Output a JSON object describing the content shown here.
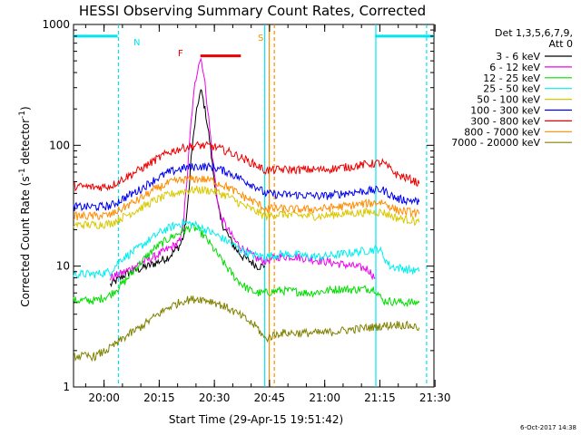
{
  "chart_data": {
    "type": "line",
    "title": "HESSI Observing Summary Count Rates, Corrected",
    "xlabel": "Start Time (29-Apr-15 19:51:42)",
    "ylabel_main": "Corrected Count Rate (s",
    "ylabel_sup1": "-1",
    "ylabel_mid": " detector",
    "ylabel_sup2": "-1",
    "ylabel_end": ")",
    "ylog": true,
    "ylim": [
      1,
      1000
    ],
    "xlim_minutes": [
      0,
      98
    ],
    "x_ticks": [
      {
        "label": "20:00",
        "min": 8.3
      },
      {
        "label": "20:15",
        "min": 23.3
      },
      {
        "label": "20:30",
        "min": 38.3
      },
      {
        "label": "20:45",
        "min": 53.3
      },
      {
        "label": "21:00",
        "min": 68.3
      },
      {
        "label": "21:15",
        "min": 83.3
      },
      {
        "label": "21:30",
        "min": 98.3
      }
    ],
    "y_ticks": [
      {
        "label": "1",
        "v": 1
      },
      {
        "label": "10",
        "v": 10
      },
      {
        "label": "100",
        "v": 100
      },
      {
        "label": "1000",
        "v": 1000
      }
    ],
    "legend_header": [
      "Det 1,3,5,6,7,9,",
      "Att 0"
    ],
    "timestamp": "6-Oct-2017 14:38",
    "markers": {
      "N": {
        "label": "N",
        "color": "#00e5ee",
        "segments": [
          [
            0,
            12
          ],
          [
            82,
            98
          ]
        ],
        "value": 800
      },
      "F": {
        "label": "F",
        "color": "#ee0000",
        "segments": [
          [
            34.5,
            45.5
          ]
        ],
        "value": 550
      },
      "S": {
        "label": "S",
        "color": "#ff8c00"
      }
    },
    "vlines": [
      {
        "min": 12.2,
        "color": "#00e5ee",
        "dash": true
      },
      {
        "min": 52.0,
        "color": "#00e5ee",
        "dash": false
      },
      {
        "min": 53.2,
        "color": "#ff8c00",
        "dash": false
      },
      {
        "min": 54.6,
        "color": "#ff8c00",
        "dash": true
      },
      {
        "min": 82.2,
        "color": "#00e5ee",
        "dash": false
      },
      {
        "min": 96.0,
        "color": "#00e5ee",
        "dash": true
      }
    ],
    "series": [
      {
        "name": "3 - 6 keV",
        "color": "#000000",
        "points": [
          [
            10,
            7
          ],
          [
            14,
            8.5
          ],
          [
            18,
            9.5
          ],
          [
            22,
            10.5
          ],
          [
            26,
            12
          ],
          [
            29,
            15
          ],
          [
            30,
            18
          ],
          [
            31,
            30
          ],
          [
            32,
            80
          ],
          [
            33,
            150
          ],
          [
            34,
            240
          ],
          [
            34.6,
            280
          ],
          [
            35,
            260
          ],
          [
            36,
            180
          ],
          [
            37,
            110
          ],
          [
            38,
            60
          ],
          [
            39,
            35
          ],
          [
            40,
            24
          ],
          [
            42,
            18
          ],
          [
            44,
            14
          ],
          [
            46,
            12
          ],
          [
            48,
            11
          ],
          [
            50,
            10
          ],
          [
            52,
            10
          ]
        ]
      },
      {
        "name": "6 - 12 keV",
        "color": "#ee00ee",
        "points": [
          [
            10,
            8
          ],
          [
            14,
            9
          ],
          [
            18,
            10.5
          ],
          [
            22,
            12
          ],
          [
            26,
            14
          ],
          [
            29,
            16
          ],
          [
            30,
            25
          ],
          [
            31,
            60
          ],
          [
            32,
            160
          ],
          [
            33,
            320
          ],
          [
            34,
            480
          ],
          [
            34.6,
            520
          ],
          [
            35,
            470
          ],
          [
            36,
            280
          ],
          [
            37,
            140
          ],
          [
            38,
            70
          ],
          [
            39,
            38
          ],
          [
            40,
            26
          ],
          [
            42,
            20
          ],
          [
            44,
            16
          ],
          [
            46,
            14
          ],
          [
            48,
            12.5
          ],
          [
            50,
            11.5
          ],
          [
            52,
            11
          ],
          [
            56,
            12
          ],
          [
            60,
            12
          ],
          [
            64,
            11.5
          ],
          [
            68,
            11
          ],
          [
            72,
            10.5
          ],
          [
            76,
            10
          ],
          [
            80,
            9.5
          ],
          [
            82,
            8
          ]
        ]
      },
      {
        "name": "12 - 25 keV",
        "color": "#00dd00",
        "points": [
          [
            0,
            5.2
          ],
          [
            6,
            5.2
          ],
          [
            10,
            5.8
          ],
          [
            14,
            7.5
          ],
          [
            18,
            10.5
          ],
          [
            22,
            14
          ],
          [
            26,
            17
          ],
          [
            29,
            19
          ],
          [
            32,
            21
          ],
          [
            34,
            20
          ],
          [
            36,
            17
          ],
          [
            38,
            14
          ],
          [
            40,
            11.5
          ],
          [
            42,
            9.5
          ],
          [
            44,
            8
          ],
          [
            46,
            7
          ],
          [
            48,
            6.3
          ],
          [
            50,
            6
          ],
          [
            52,
            6
          ],
          [
            56,
            6.3
          ],
          [
            60,
            6.2
          ],
          [
            64,
            6
          ],
          [
            68,
            6.2
          ],
          [
            72,
            6.5
          ],
          [
            76,
            6.4
          ],
          [
            80,
            6.5
          ],
          [
            82,
            6.5
          ],
          [
            84,
            5.2
          ],
          [
            90,
            5
          ],
          [
            94,
            5
          ]
        ]
      },
      {
        "name": "25 - 50 keV",
        "color": "#00eeee",
        "points": [
          [
            0,
            8.6
          ],
          [
            6,
            8.6
          ],
          [
            10,
            9
          ],
          [
            13,
            11.5
          ],
          [
            16,
            13
          ],
          [
            20,
            16
          ],
          [
            24,
            19.5
          ],
          [
            28,
            22
          ],
          [
            30,
            23
          ],
          [
            33,
            22
          ],
          [
            36,
            20
          ],
          [
            39,
            18
          ],
          [
            42,
            16
          ],
          [
            45,
            14
          ],
          [
            48,
            12.5
          ],
          [
            52,
            12
          ],
          [
            56,
            12.5
          ],
          [
            60,
            12.5
          ],
          [
            64,
            12
          ],
          [
            68,
            12
          ],
          [
            72,
            12.5
          ],
          [
            76,
            13
          ],
          [
            80,
            13.5
          ],
          [
            83,
            14
          ],
          [
            86,
            10
          ],
          [
            90,
            9.5
          ],
          [
            94,
            9
          ]
        ]
      },
      {
        "name": "50 - 100 keV",
        "color": "#d8c800",
        "points": [
          [
            0,
            22
          ],
          [
            6,
            22
          ],
          [
            10,
            22.5
          ],
          [
            14,
            26
          ],
          [
            18,
            30
          ],
          [
            22,
            35
          ],
          [
            26,
            39
          ],
          [
            30,
            42
          ],
          [
            34,
            43
          ],
          [
            38,
            42
          ],
          [
            42,
            38
          ],
          [
            46,
            32
          ],
          [
            50,
            28
          ],
          [
            52,
            26
          ],
          [
            56,
            27
          ],
          [
            60,
            26.5
          ],
          [
            64,
            26
          ],
          [
            68,
            26
          ],
          [
            72,
            27
          ],
          [
            76,
            27.5
          ],
          [
            80,
            28
          ],
          [
            84,
            28
          ],
          [
            88,
            25
          ],
          [
            92,
            24
          ],
          [
            94,
            23
          ]
        ]
      },
      {
        "name": "100 - 300 keV",
        "color": "#0000ee",
        "points": [
          [
            0,
            31
          ],
          [
            6,
            31
          ],
          [
            10,
            31.5
          ],
          [
            14,
            37
          ],
          [
            18,
            43
          ],
          [
            22,
            52
          ],
          [
            26,
            60
          ],
          [
            30,
            65
          ],
          [
            34,
            67
          ],
          [
            38,
            66
          ],
          [
            42,
            60
          ],
          [
            46,
            52
          ],
          [
            50,
            45
          ],
          [
            52,
            40
          ],
          [
            56,
            39
          ],
          [
            60,
            39
          ],
          [
            64,
            38.5
          ],
          [
            68,
            38
          ],
          [
            72,
            39.5
          ],
          [
            76,
            41
          ],
          [
            80,
            42
          ],
          [
            84,
            43
          ],
          [
            88,
            36
          ],
          [
            92,
            35
          ],
          [
            94,
            34
          ]
        ]
      },
      {
        "name": "300 - 800 keV",
        "color": "#ee0000",
        "points": [
          [
            0,
            46
          ],
          [
            6,
            45
          ],
          [
            10,
            46
          ],
          [
            14,
            54
          ],
          [
            18,
            63
          ],
          [
            22,
            75
          ],
          [
            26,
            88
          ],
          [
            30,
            96
          ],
          [
            34,
            100
          ],
          [
            38,
            98
          ],
          [
            42,
            89
          ],
          [
            46,
            78
          ],
          [
            50,
            68
          ],
          [
            52,
            62
          ],
          [
            56,
            63
          ],
          [
            60,
            63
          ],
          [
            64,
            63
          ],
          [
            68,
            63
          ],
          [
            72,
            65
          ],
          [
            76,
            67
          ],
          [
            80,
            70
          ],
          [
            84,
            72
          ],
          [
            88,
            57
          ],
          [
            92,
            52
          ],
          [
            94,
            48
          ]
        ]
      },
      {
        "name": "800 - 7000 keV",
        "color": "#ff8c00",
        "points": [
          [
            0,
            26
          ],
          [
            6,
            26
          ],
          [
            10,
            26.5
          ],
          [
            14,
            31
          ],
          [
            18,
            36
          ],
          [
            22,
            43
          ],
          [
            26,
            49
          ],
          [
            30,
            52
          ],
          [
            34,
            53
          ],
          [
            38,
            51
          ],
          [
            42,
            45
          ],
          [
            46,
            38
          ],
          [
            50,
            33
          ],
          [
            52,
            30
          ],
          [
            56,
            30
          ],
          [
            60,
            29.5
          ],
          [
            64,
            29.5
          ],
          [
            68,
            30
          ],
          [
            72,
            31
          ],
          [
            76,
            32
          ],
          [
            80,
            33
          ],
          [
            84,
            34
          ],
          [
            88,
            29
          ],
          [
            92,
            28
          ],
          [
            94,
            27
          ]
        ]
      },
      {
        "name": "7000 - 20000 keV",
        "color": "#808000",
        "points": [
          [
            0,
            1.8
          ],
          [
            6,
            1.8
          ],
          [
            10,
            2.1
          ],
          [
            14,
            2.6
          ],
          [
            18,
            3.1
          ],
          [
            22,
            3.8
          ],
          [
            26,
            4.6
          ],
          [
            30,
            5.2
          ],
          [
            34,
            5.4
          ],
          [
            38,
            5.1
          ],
          [
            42,
            4.5
          ],
          [
            46,
            3.8
          ],
          [
            50,
            3.1
          ],
          [
            52,
            2.5
          ],
          [
            56,
            2.8
          ],
          [
            60,
            2.8
          ],
          [
            64,
            2.8
          ],
          [
            68,
            2.8
          ],
          [
            72,
            2.9
          ],
          [
            76,
            3
          ],
          [
            80,
            3.1
          ],
          [
            84,
            3.2
          ],
          [
            88,
            3.3
          ],
          [
            92,
            3.2
          ],
          [
            94,
            3.1
          ]
        ]
      }
    ]
  }
}
